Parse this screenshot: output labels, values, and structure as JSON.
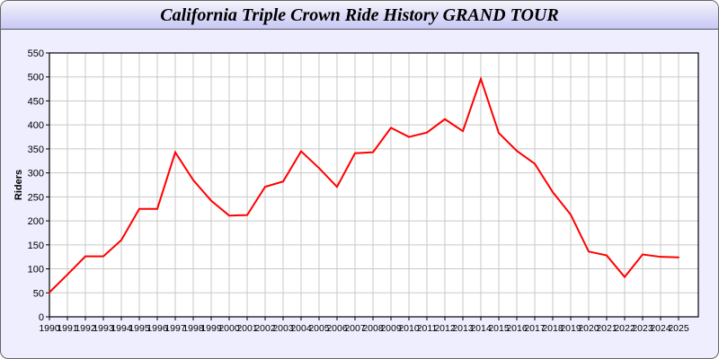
{
  "chart_data": {
    "type": "line",
    "title": "California Triple Crown Ride History GRAND TOUR",
    "xlabel": "",
    "ylabel": "Riders",
    "ylim": [
      0,
      550
    ],
    "yticks": [
      0,
      50,
      100,
      150,
      200,
      250,
      300,
      350,
      400,
      450,
      500,
      550
    ],
    "grid": true,
    "line_color": "#ff0000",
    "categories": [
      "1990",
      "1991",
      "1992",
      "1993",
      "1994",
      "1995",
      "1996",
      "1997",
      "1998",
      "1999",
      "2000",
      "2001",
      "2002",
      "2003",
      "2004",
      "2005",
      "2006",
      "2007",
      "2008",
      "2009",
      "2010",
      "2011",
      "2012",
      "2013",
      "2014",
      "2015",
      "2016",
      "2017",
      "2018",
      "2019",
      "2020",
      "2021",
      "2022",
      "2023",
      "2024",
      "2025"
    ],
    "series": [
      {
        "values": [
          51,
          88,
          126,
          126,
          160,
          225,
          225,
          343,
          285,
          242,
          211,
          212,
          271,
          282,
          345,
          310,
          271,
          341,
          343,
          394,
          375,
          384,
          412,
          387,
          496,
          383,
          346,
          319,
          260,
          213,
          136,
          128,
          83,
          130,
          125,
          124
        ]
      }
    ]
  }
}
